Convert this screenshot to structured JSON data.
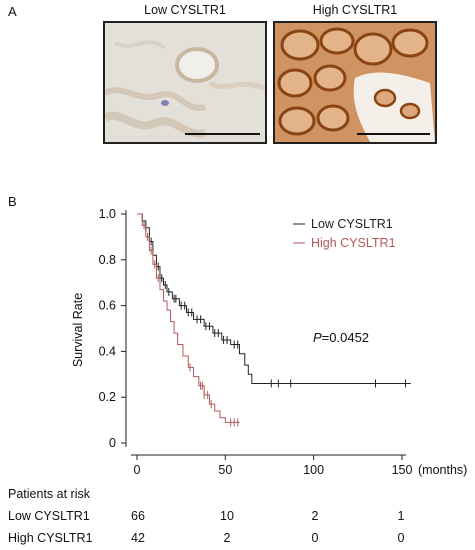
{
  "panel_a": {
    "label": "A",
    "images": [
      {
        "title": "Low CYSLTR1"
      },
      {
        "title": "High CYSLTR1"
      }
    ]
  },
  "panel_b": {
    "label": "B",
    "annotation_p_label": "P",
    "annotation_p_value": "=0.0452",
    "months_label": "(months)"
  },
  "chart_data": {
    "type": "line",
    "xlabel": "",
    "ylabel": "Survival Rate",
    "xlim": [
      0,
      150
    ],
    "ylim": [
      0,
      1.0
    ],
    "x_ticks": [
      "0",
      "50",
      "100",
      "150"
    ],
    "y_ticks": [
      "0",
      "0.2",
      "0.4",
      "0.6",
      "0.8",
      "1.0"
    ],
    "legend_position": "top-right",
    "series": [
      {
        "name": "Low CYSLTR1",
        "color": "#222222",
        "points": [
          [
            0,
            1.0
          ],
          [
            3,
            0.97
          ],
          [
            5,
            0.94
          ],
          [
            7,
            0.88
          ],
          [
            9,
            0.82
          ],
          [
            11,
            0.77
          ],
          [
            13,
            0.72
          ],
          [
            15,
            0.69
          ],
          [
            17,
            0.66
          ],
          [
            20,
            0.63
          ],
          [
            24,
            0.6
          ],
          [
            28,
            0.57
          ],
          [
            32,
            0.54
          ],
          [
            38,
            0.51
          ],
          [
            43,
            0.48
          ],
          [
            48,
            0.45
          ],
          [
            53,
            0.43
          ],
          [
            58,
            0.39
          ],
          [
            61,
            0.34
          ],
          [
            63,
            0.3
          ],
          [
            65,
            0.26
          ],
          [
            155,
            0.26
          ]
        ],
        "censor_x": [
          5,
          8,
          12,
          14,
          16,
          18,
          21,
          22,
          25,
          27,
          29,
          31,
          34,
          36,
          39,
          41,
          44,
          46,
          49,
          51,
          55,
          57,
          76,
          80,
          87,
          135,
          152
        ]
      },
      {
        "name": "High CYSLTR1",
        "color": "#b05a5a",
        "points": [
          [
            0,
            1.0
          ],
          [
            3,
            0.95
          ],
          [
            5,
            0.9
          ],
          [
            7,
            0.84
          ],
          [
            9,
            0.78
          ],
          [
            11,
            0.72
          ],
          [
            13,
            0.67
          ],
          [
            15,
            0.62
          ],
          [
            17,
            0.58
          ],
          [
            19,
            0.53
          ],
          [
            21,
            0.48
          ],
          [
            23,
            0.43
          ],
          [
            26,
            0.38
          ],
          [
            29,
            0.33
          ],
          [
            32,
            0.29
          ],
          [
            35,
            0.25
          ],
          [
            38,
            0.21
          ],
          [
            41,
            0.17
          ],
          [
            44,
            0.14
          ],
          [
            47,
            0.11
          ],
          [
            50,
            0.09
          ],
          [
            58,
            0.09
          ]
        ],
        "censor_x": [
          4,
          6,
          8,
          10,
          12,
          30,
          36,
          37,
          38,
          40,
          42,
          53,
          55,
          57
        ]
      }
    ]
  },
  "risk_table": {
    "title": "Patients at risk",
    "rows": [
      {
        "label": "Low CYSLTR1",
        "values": [
          "66",
          "10",
          "2",
          "1"
        ]
      },
      {
        "label": "High CYSLTR1",
        "values": [
          "42",
          "2",
          "0",
          "0"
        ]
      }
    ]
  }
}
